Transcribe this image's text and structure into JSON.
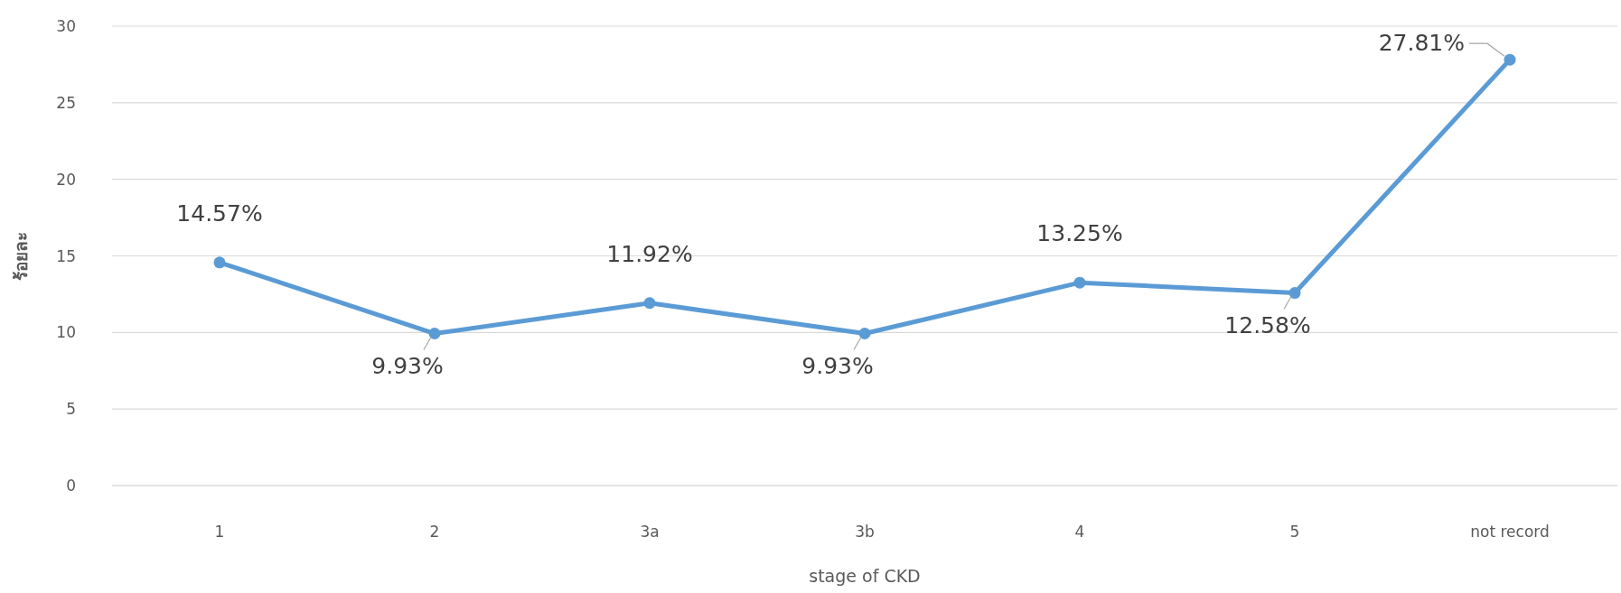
{
  "chart_data": {
    "type": "line",
    "xlabel": "stage of CKD",
    "ylabel": "ร้อยละ",
    "categories": [
      "1",
      "2",
      "3a",
      "3b",
      "4",
      "5",
      "not record"
    ],
    "series": [
      {
        "color": "#5b9bd5",
        "values": [
          14.57,
          9.93,
          11.92,
          9.93,
          13.25,
          12.58,
          27.81
        ],
        "value_labels": [
          "14.57%",
          "9.93%",
          "11.92%",
          "9.93%",
          "13.25%",
          "12.58%",
          "27.81%"
        ]
      }
    ],
    "ylim": [
      0,
      30
    ],
    "yticks": [
      0,
      5,
      10,
      15,
      20,
      25,
      30
    ],
    "grid": "y",
    "marker": "circle",
    "line_style": "solid"
  }
}
